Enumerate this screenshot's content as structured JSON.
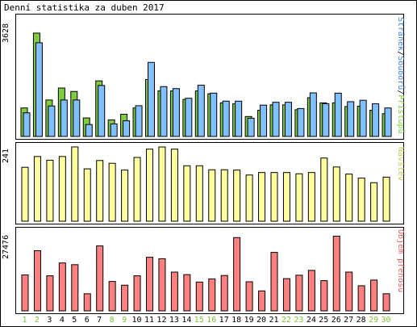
{
  "title": "Denní statistika za duben 2017",
  "colors": {
    "hits": "#80cc40",
    "files": "#80c0ff",
    "visits": "#ffffa0",
    "kbytes": "#ff8080",
    "weekday": "#000000",
    "weekend": "#80c040",
    "label_hits": "#80cc40",
    "label_files": "#4080d8",
    "label_visits": "#c8c860",
    "label_kbytes": "#e06060"
  },
  "chart_data": [
    {
      "type": "bar",
      "name": "hits-files",
      "ymax_label": "3628",
      "ylim": [
        0,
        3628
      ],
      "legend_parts": [
        "Stránek",
        "Souborů",
        "Přístupů"
      ],
      "legend_sep": "/",
      "categories": [
        "1",
        "2",
        "3",
        "4",
        "5",
        "6",
        "7",
        "8",
        "9",
        "10",
        "11",
        "12",
        "13",
        "14",
        "15",
        "16",
        "17",
        "18",
        "19",
        "20",
        "21",
        "22",
        "23",
        "24",
        "25",
        "26",
        "27",
        "28",
        "29",
        "30"
      ],
      "weekend_days": [
        "1",
        "2",
        "8",
        "9",
        "15",
        "16",
        "22",
        "23",
        "29",
        "30"
      ],
      "series": [
        {
          "name": "Přístupů",
          "values": [
            1000,
            3628,
            1280,
            1700,
            1580,
            650,
            1950,
            580,
            780,
            1000,
            2000,
            1600,
            1600,
            1300,
            1600,
            1500,
            1180,
            1150,
            700,
            920,
            1110,
            1110,
            940,
            1360,
            1180,
            1180,
            1050,
            1060,
            920,
            800
          ]
        },
        {
          "name": "Souborů",
          "values": [
            830,
            3290,
            1070,
            1280,
            1280,
            420,
            1790,
            440,
            550,
            1080,
            2600,
            1750,
            1680,
            1340,
            1800,
            1520,
            1240,
            1240,
            640,
            1100,
            1200,
            1200,
            980,
            1530,
            1150,
            1520,
            1220,
            1270,
            1150,
            1000
          ]
        }
      ]
    },
    {
      "type": "bar",
      "name": "visits",
      "ymax_label": "241",
      "ylim": [
        0,
        241
      ],
      "legend_parts": [
        "Návštěv"
      ],
      "categories": [
        "1",
        "2",
        "3",
        "4",
        "5",
        "6",
        "7",
        "8",
        "9",
        "10",
        "11",
        "12",
        "13",
        "14",
        "15",
        "16",
        "17",
        "18",
        "19",
        "20",
        "21",
        "22",
        "23",
        "24",
        "25",
        "26",
        "27",
        "28",
        "29",
        "30"
      ],
      "series": [
        {
          "name": "Návštěv",
          "values": [
            175,
            210,
            198,
            210,
            241,
            170,
            197,
            188,
            166,
            207,
            234,
            241,
            234,
            180,
            180,
            167,
            167,
            166,
            150,
            158,
            158,
            158,
            154,
            158,
            205,
            176,
            153,
            140,
            125,
            143
          ]
        }
      ]
    },
    {
      "type": "bar",
      "name": "kbytes",
      "ymax_label": "27476",
      "ylim": [
        0,
        27476
      ],
      "legend_parts": [
        "Objem přenosu"
      ],
      "categories": [
        "1",
        "2",
        "3",
        "4",
        "5",
        "6",
        "7",
        "8",
        "9",
        "10",
        "11",
        "12",
        "13",
        "14",
        "15",
        "16",
        "17",
        "18",
        "19",
        "20",
        "21",
        "22",
        "23",
        "24",
        "25",
        "26",
        "27",
        "28",
        "29",
        "30"
      ],
      "series": [
        {
          "name": "Objem přenosu",
          "values": [
            12600,
            21100,
            12300,
            16800,
            16200,
            6000,
            22800,
            10300,
            9000,
            12300,
            18800,
            18300,
            13600,
            12700,
            10100,
            11200,
            12400,
            25700,
            10200,
            7000,
            20500,
            11300,
            12500,
            14200,
            10600,
            26200,
            13600,
            8800,
            10800,
            6000
          ]
        }
      ]
    }
  ]
}
